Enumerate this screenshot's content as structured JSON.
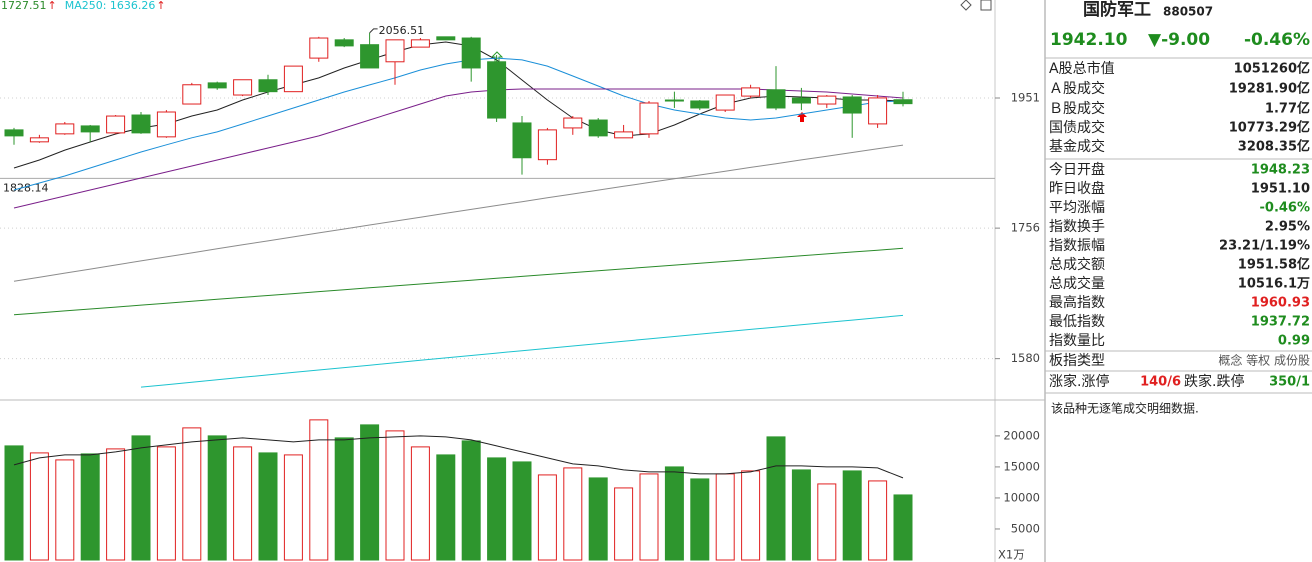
{
  "chart_data": [
    {
      "type": "candlestick",
      "yscale": "log",
      "ylim": [
        1528,
        2112
      ],
      "yticks": [
        1951,
        1756,
        1580
      ],
      "grid": true,
      "colors": {
        "up": "#e02020",
        "down": "#2e962e"
      },
      "open": [
        1901.3,
        1883,
        1895.2,
        1907.4,
        1896.7,
        1924.3,
        1890.6,
        1941.5,
        1975,
        1955.7,
        1980,
        1961,
        2015,
        2045,
        2037,
        2009,
        2033,
        2050,
        2048,
        2009,
        1912,
        1856,
        1904.3,
        1916.5,
        1889.1,
        1895.2,
        1947.8,
        1946.3,
        1932,
        1954,
        1964,
        1951,
        1941.5,
        1952.6,
        1910.5,
        1948.23
      ],
      "high": [
        1904.3,
        1893.7,
        1913.5,
        1908.9,
        1924.3,
        1929,
        1932,
        1975,
        1977,
        1980,
        1988,
        2002,
        2050,
        2048,
        2056.51,
        2045,
        2048,
        2050,
        2050,
        2020,
        1922.7,
        1904.3,
        1922.7,
        1919.6,
        1908.9,
        1946.3,
        1961,
        1947.8,
        1955.7,
        1972,
        2002,
        1967,
        1955.7,
        1955.7,
        1955.7,
        1960.93
      ],
      "low": [
        1878.5,
        1881.5,
        1893.7,
        1883,
        1895.2,
        1895.2,
        1889.1,
        1941.5,
        1964,
        1954,
        1955.7,
        1961,
        2009,
        2033,
        1999,
        1972,
        2033,
        2045,
        1977,
        1913.5,
        1833.6,
        1848.5,
        1893.7,
        1889.1,
        1889.1,
        1889.1,
        1935.3,
        1932,
        1929,
        1951,
        1932,
        1932,
        1935.3,
        1889.1,
        1904.3,
        1937.72
      ],
      "close": [
        1892.1,
        1889.1,
        1910.5,
        1898.2,
        1922.7,
        1896.7,
        1929,
        1972,
        1967,
        1980,
        1961,
        2002,
        2048,
        2035,
        1999,
        2045,
        2045,
        2045,
        1999,
        1919.6,
        1858.9,
        1901.3,
        1919.6,
        1892.1,
        1898.2,
        1943.1,
        1946.3,
        1935.3,
        1955.7,
        1967,
        1935.3,
        1943.1,
        1954,
        1927.4,
        1951.1,
        1942.1
      ],
      "series": [
        {
          "color": "#222222",
          "values": [
            1843.5,
            1855.5,
            1870.5,
            1882.7,
            1894.9,
            1904.2,
            1910.3,
            1922.8,
            1932.1,
            1947.8,
            1960.5,
            1971.7,
            1982.9,
            1999,
            2012,
            2025.1,
            2036.6,
            2041.5,
            2034.9,
            2012,
            1979.6,
            1947.8,
            1919.7,
            1901.3,
            1892.1,
            1894.9,
            1908.9,
            1925.9,
            1941.5,
            1951,
            1954.2,
            1952.6,
            1951,
            1947.8,
            1947.8,
            1946.3
          ]
        },
        {
          "color": "#1a8fd8",
          "values": [
            1811,
            1821.3,
            1831.6,
            1843.5,
            1855.5,
            1867.6,
            1878.5,
            1889.1,
            1898.2,
            1910.3,
            1922.8,
            1935.3,
            1947.8,
            1960.5,
            1971.7,
            1982.9,
            1995.7,
            2005.4,
            2012,
            2015,
            2012,
            2002,
            1986.1,
            1970.1,
            1954.2,
            1941.5,
            1932.1,
            1925.9,
            1919.7,
            1916.5,
            1919.7,
            1925.9,
            1932.1,
            1938.4,
            1944.7,
            1946.3
          ]
        },
        {
          "color": "#7a1f8a",
          "values": [
            1784.9,
            1793.5,
            1802.2,
            1811,
            1819.8,
            1828.7,
            1837.6,
            1846.5,
            1855.5,
            1864.5,
            1873.6,
            1882.7,
            1892.1,
            1904.2,
            1916.5,
            1929,
            1941.5,
            1954.2,
            1960.5,
            1963.7,
            1965.3,
            1965.3,
            1965.3,
            1965.3,
            1965.3,
            1965.3,
            1965.3,
            1965.3,
            1965.3,
            1965.3,
            1963.7,
            1962.1,
            1960.5,
            1957.3,
            1954.2,
            1951
          ]
        },
        {
          "color": "#8c8c8c",
          "values": [
            1682,
            1687.6,
            1693.2,
            1698.8,
            1704.4,
            1710,
            1715.6,
            1721.2,
            1726.8,
            1732.4,
            1738,
            1743.6,
            1749.2,
            1754.8,
            1760.4,
            1766,
            1771.6,
            1777.2,
            1782.8,
            1788.4,
            1794,
            1799.6,
            1805.2,
            1810.8,
            1816.4,
            1822,
            1827.6,
            1833.2,
            1838.8,
            1844.4,
            1850,
            1855.6,
            1861.2,
            1866.8,
            1872.4,
            1878
          ]
        },
        {
          "color": "#2a8a2a",
          "values": [
            1637,
            1639.59,
            1642.17,
            1644.76,
            1647.34,
            1649.93,
            1652.52,
            1655.1,
            1657.69,
            1660.27,
            1662.86,
            1665.45,
            1668.03,
            1670.62,
            1673.2,
            1675.79,
            1678.38,
            1680.96,
            1683.55,
            1686.13,
            1688.72,
            1691.31,
            1693.89,
            1696.48,
            1699.06,
            1701.65,
            1704.24,
            1706.82,
            1709.41,
            1711.99,
            1714.58,
            1717.17,
            1719.75,
            1722.34,
            1724.92,
            1727.51
          ]
        },
        {
          "color": "#1cc3cf",
          "values": [
            null,
            null,
            null,
            null,
            null,
            1544,
            1547.08,
            1550.15,
            1553.23,
            1556.3,
            1559.38,
            1562.45,
            1565.53,
            1568.6,
            1571.68,
            1574.76,
            1577.83,
            1580.91,
            1583.98,
            1587.06,
            1590.13,
            1593.21,
            1596.28,
            1599.36,
            1602.44,
            1605.51,
            1608.59,
            1611.66,
            1614.74,
            1617.81,
            1620.89,
            1623.96,
            1627.04,
            1630.12,
            1633.19,
            1636.26
          ]
        }
      ],
      "legend": [
        {
          "text": "1727.51",
          "arrow": "↑",
          "color": "#2a8a2a"
        },
        {
          "text": "MA250: 1636.26",
          "arrow": "↑",
          "color": "#1cc3cf"
        }
      ],
      "high_label": 2056.51,
      "ref_line": 1828.14
    },
    {
      "type": "bar",
      "ylim": [
        0,
        25300
      ],
      "yticks": [
        20000,
        15000,
        10000,
        5000
      ],
      "unit_label": "X1万",
      "values": [
        18387,
        17258,
        16129,
        17097,
        17903,
        20000,
        18226,
        21290,
        20000,
        18226,
        17258,
        16935,
        22581,
        19677,
        21774,
        20806,
        18226,
        16935,
        19194,
        16452,
        15806,
        13710,
        14839,
        13226,
        11613,
        13871,
        15000,
        13065,
        13871,
        14355,
        19839,
        14516,
        12258,
        14355,
        12742,
        10484
      ],
      "series": [
        {
          "color": "#222222",
          "values": [
            15323,
            16452,
            16935,
            16935,
            17419,
            18065,
            18548,
            19032,
            19355,
            19677,
            19355,
            19032,
            19355,
            19355,
            19677,
            19839,
            20000,
            19839,
            19355,
            18387,
            17419,
            16452,
            15484,
            15161,
            14516,
            14194,
            14194,
            13871,
            13871,
            14194,
            15161,
            15161,
            15000,
            15000,
            14839,
            13226
          ]
        }
      ]
    }
  ],
  "panel": {
    "name": "国防军工",
    "code": "880507",
    "price": "1942.10",
    "change": "▼-9.00",
    "change_pct": "-0.46%",
    "rows": [
      [
        "A股总市值",
        "1051260亿"
      ],
      [
        "Ａ股成交",
        "19281.90亿"
      ],
      [
        "Ｂ股成交",
        "1.77亿"
      ],
      [
        "国债成交",
        "10773.29亿"
      ],
      [
        "基金成交",
        "3208.35亿"
      ],
      [
        "今日开盘",
        "1948.23"
      ],
      [
        "昨日收盘",
        "1951.10"
      ],
      [
        "平均涨幅",
        "-0.46%"
      ],
      [
        "指数换手",
        "2.95%"
      ],
      [
        "指数振幅",
        "23.21/1.19%"
      ],
      [
        "总成交额",
        "1951.58亿"
      ],
      [
        "总成交量",
        "10516.1万"
      ],
      [
        "最高指数",
        "1960.93"
      ],
      [
        "最低指数",
        "1937.72"
      ],
      [
        "指数量比",
        "0.99"
      ]
    ],
    "type_row": [
      "板指类型",
      "概念 等权 成份股"
    ],
    "breadth": [
      "涨家.涨停",
      "140/6",
      "跌家.跌停",
      "350/1"
    ],
    "note": "该品种无逐笔成交明细数据."
  }
}
